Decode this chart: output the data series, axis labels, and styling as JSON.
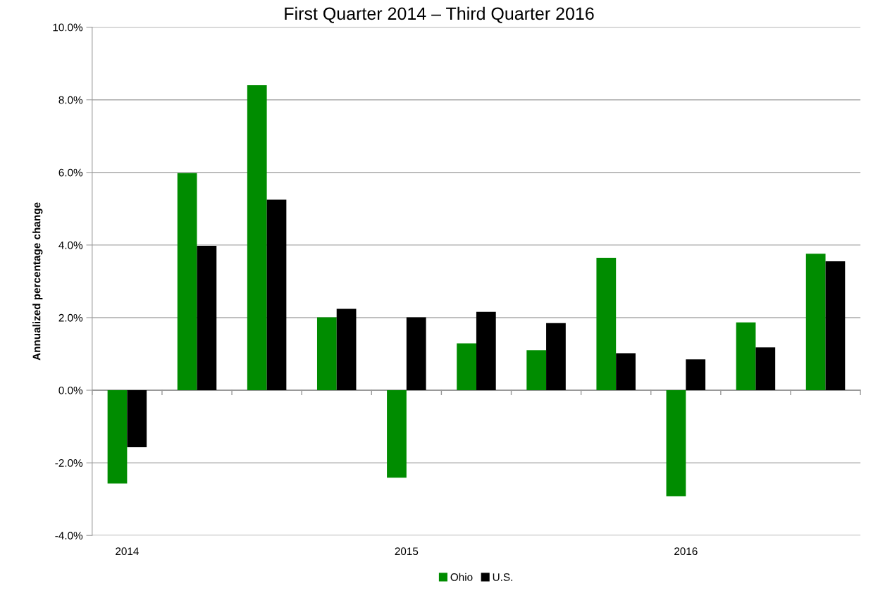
{
  "chart_data": {
    "type": "bar",
    "title": "First Quarter 2014 – Third Quarter 2016",
    "ylabel": "Annualized percentage change",
    "categories": [
      "2014",
      null,
      null,
      null,
      "2015",
      null,
      null,
      null,
      "2016",
      null,
      null
    ],
    "series": [
      {
        "name": "Ohio",
        "color": "#008c00",
        "values": [
          -2.57,
          5.98,
          8.4,
          2.01,
          -2.41,
          1.29,
          1.1,
          3.65,
          -2.92,
          1.87,
          3.76
        ]
      },
      {
        "name": "U.S.",
        "color": "#000000",
        "values": [
          -1.57,
          3.98,
          5.25,
          2.24,
          2.01,
          2.16,
          1.85,
          1.02,
          0.85,
          1.18,
          3.55
        ]
      }
    ],
    "ylim": [
      -4,
      10
    ],
    "yticks": [
      {
        "value": -4,
        "label": "-4.0%"
      },
      {
        "value": -2,
        "label": "-2.0%"
      },
      {
        "value": 0,
        "label": "0.0%"
      },
      {
        "value": 2,
        "label": "2.0%"
      },
      {
        "value": 4,
        "label": "4.0%"
      },
      {
        "value": 6,
        "label": "6.0%"
      },
      {
        "value": 8,
        "label": "8.0%"
      },
      {
        "value": 10,
        "label": "10.0%"
      }
    ],
    "grid": "y",
    "legend": "bottom"
  }
}
